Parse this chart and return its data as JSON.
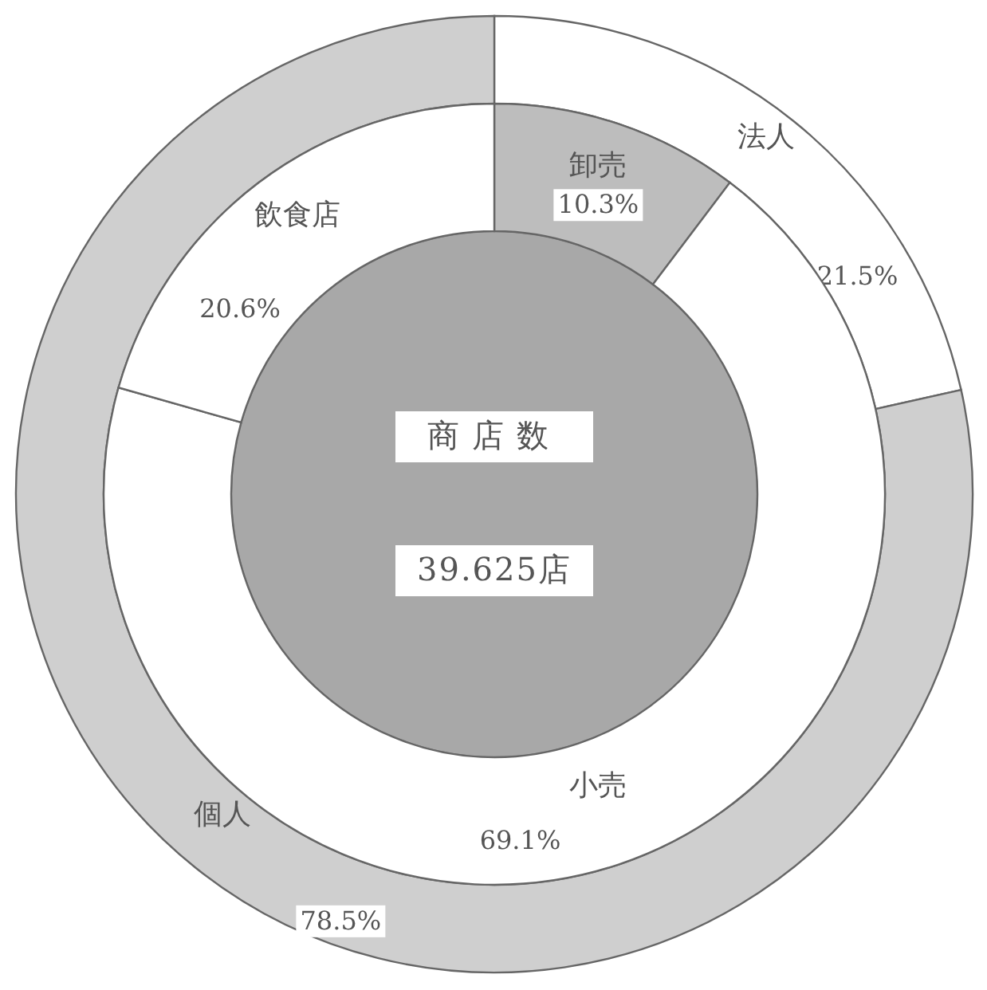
{
  "chart_data": [
    {
      "type": "donut",
      "categories": [
        "法人",
        "個人"
      ],
      "values": [
        21.5,
        78.5
      ],
      "value_labels": [
        "21.5%",
        "78.5%"
      ],
      "colors": [
        "#ffffff",
        "#cfcfcf"
      ]
    },
    {
      "type": "donut",
      "categories": [
        "卸売",
        "小売",
        "飲食店"
      ],
      "values": [
        10.3,
        69.1,
        20.6
      ],
      "value_labels": [
        "10.3%",
        "69.1%",
        "20.6%"
      ],
      "colors": [
        "#bdbdbd",
        "#ffffff",
        "#ffffff"
      ],
      "annotations": [
        "商店数",
        "39.625店"
      ]
    }
  ]
}
